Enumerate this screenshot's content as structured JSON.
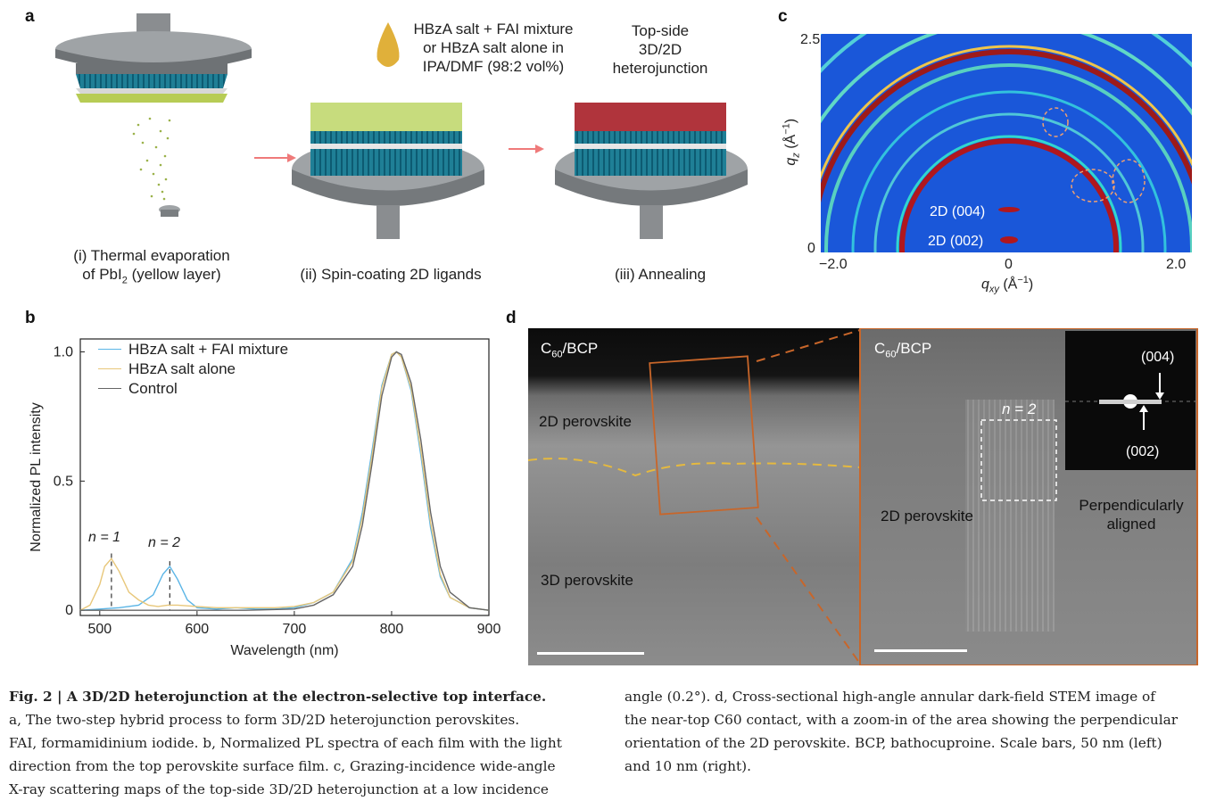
{
  "panel_a": {
    "label": "a",
    "solution_text": [
      "HBzA salt + FAI mixture",
      "or HBzA salt alone in",
      "IPA/DMF (98:2 vol%)"
    ],
    "result_text": [
      "Top-side",
      "3D/2D",
      "heterojunction"
    ],
    "step1": [
      "(i) Thermal evaporation",
      "of PbI",
      "2",
      " (yellow layer)"
    ],
    "step2": "(ii) Spin-coating 2D ligands",
    "step3": "(iii) Annealing"
  },
  "panel_b": {
    "label": "b",
    "annotations": {
      "n1": "n = 1",
      "n2": "n = 2"
    }
  },
  "panel_c": {
    "label": "c",
    "ylabel_main": "q",
    "ylabel_sub": "z",
    "ylabel_unit": " (Å",
    "ylabel_exp": "−1",
    "ylabel_close": ")",
    "xlabel_main": "q",
    "xlabel_sub": "xy",
    "xlabel_unit": " (Å",
    "xlabel_exp": "−1",
    "xlabel_close": ")",
    "xticks": [
      "−2.0",
      "0",
      "2.0"
    ],
    "yticks": [
      "2.5",
      "0"
    ],
    "peak1": "2D (004)",
    "peak2": "2D (002)"
  },
  "panel_d": {
    "label": "d",
    "left_top": "C",
    "left_top_sub": "60",
    "left_top_rest": "/BCP",
    "left_2d": "2D perovskite",
    "left_3d": "3D perovskite",
    "right_top": "C",
    "right_top_sub": "60",
    "right_top_rest": "/BCP",
    "right_n": "n = 2",
    "right_2d": "2D perovskite",
    "right_aligned": [
      "Perpendicularly",
      "aligned"
    ],
    "fft_004": "(004)",
    "fft_002": "(002)"
  },
  "chart_data": {
    "type": "line",
    "title": "",
    "xlabel": "Wavelength (nm)",
    "ylabel": "Normalized PL intensity",
    "xlim": [
      480,
      900
    ],
    "ylim": [
      -0.02,
      1.05
    ],
    "xticks": [
      "500",
      "600",
      "700",
      "800",
      "900"
    ],
    "yticks": [
      "0",
      "0.5",
      "1.0"
    ],
    "legend_position": "top-left",
    "series": [
      {
        "name": "HBzA salt + FAI mixture",
        "color": "#5bb5e6",
        "x": [
          480,
          500,
          520,
          540,
          555,
          565,
          572,
          580,
          590,
          600,
          620,
          640,
          660,
          680,
          700,
          720,
          740,
          760,
          770,
          780,
          790,
          800,
          805,
          810,
          820,
          830,
          840,
          850,
          860,
          880,
          900
        ],
        "y": [
          0.0,
          0.005,
          0.01,
          0.02,
          0.06,
          0.14,
          0.17,
          0.12,
          0.04,
          0.01,
          0.005,
          0.01,
          0.005,
          0.005,
          0.01,
          0.03,
          0.07,
          0.2,
          0.38,
          0.62,
          0.87,
          0.99,
          1.0,
          0.98,
          0.85,
          0.6,
          0.32,
          0.13,
          0.05,
          0.01,
          0.0
        ]
      },
      {
        "name": "HBzA salt alone",
        "color": "#e8c77a",
        "x": [
          480,
          490,
          500,
          505,
          512,
          520,
          530,
          540,
          550,
          560,
          570,
          580,
          600,
          620,
          640,
          660,
          680,
          700,
          720,
          740,
          760,
          770,
          780,
          790,
          800,
          805,
          810,
          820,
          830,
          840,
          850,
          860,
          880,
          900
        ],
        "y": [
          0.0,
          0.02,
          0.1,
          0.17,
          0.2,
          0.15,
          0.07,
          0.04,
          0.02,
          0.015,
          0.02,
          0.02,
          0.015,
          0.01,
          0.01,
          0.01,
          0.01,
          0.015,
          0.03,
          0.07,
          0.19,
          0.36,
          0.6,
          0.86,
          0.99,
          1.0,
          0.98,
          0.86,
          0.62,
          0.34,
          0.14,
          0.05,
          0.01,
          0.0
        ]
      },
      {
        "name": "Control",
        "color": "#666666",
        "x": [
          480,
          500,
          550,
          600,
          650,
          700,
          720,
          740,
          760,
          770,
          780,
          790,
          800,
          805,
          810,
          820,
          830,
          840,
          850,
          860,
          880,
          900
        ],
        "y": [
          0.0,
          0.0,
          0.0,
          0.0,
          0.0,
          0.005,
          0.02,
          0.06,
          0.17,
          0.33,
          0.57,
          0.83,
          0.98,
          1.0,
          0.99,
          0.88,
          0.66,
          0.38,
          0.17,
          0.07,
          0.01,
          0.0
        ]
      }
    ]
  },
  "caption": {
    "fig_label": "Fig. 2 | A 3D/2D heterojunction at the electron-selective top interface.",
    "left_lines": [
      "a, The two-step hybrid process to form 3D/2D heterojunction perovskites.",
      "FAI, formamidinium iodide. b, Normalized PL spectra of each film with the light",
      "direction from the top perovskite surface film. c, Grazing-incidence wide-angle",
      "X-ray scattering maps of the top-side 3D/2D heterojunction at a low incidence"
    ],
    "right_lines": [
      "angle (0.2°). d, Cross-sectional high-angle annular dark-field STEM image of",
      "the near-top C60 contact, with a zoom-in of the area showing the perpendicular",
      "orientation of the 2D perovskite. BCP, bathocuproine. Scale bars, 50 nm (left)",
      "and 10 nm (right)."
    ]
  }
}
